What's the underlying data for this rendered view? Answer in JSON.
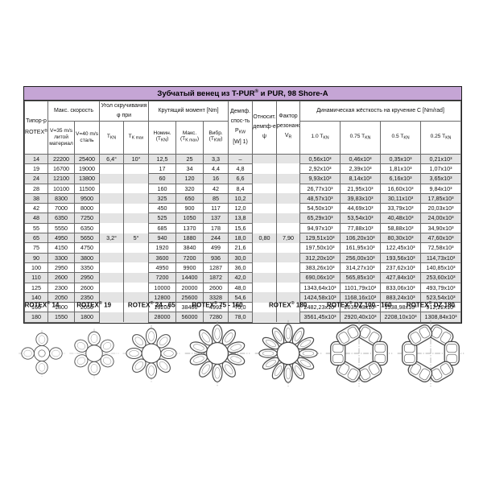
{
  "title": "Зубчатый венец из T-PUR® и PUR, 98 Shore-A",
  "table": {
    "headers": {
      "type_col": "Типор-р\nROTEX®",
      "speed_group": "Макс. скорость",
      "v35": "V=35 m/s\nлитой\nматериал",
      "v40": "V=40 m/s\nсталь",
      "angle_group": "Угол скручивания φ при",
      "angle_tkn": "T_{KN}",
      "angle_tkmax": "T_{K max}",
      "torque_group": "Крутящий момент [Nm]",
      "torque_nom": "Номин.\n(T_{KN})",
      "torque_max": "Макс.\n(T_{K max})",
      "torque_vibr": "Вибр.\n(T_{KW})",
      "damping_col": "Демпф.\nспос-ть\nP_{KW}\n[W] 1)",
      "rel_damping_col": "Относит.\nдемпф-е ψ",
      "resonance_col": "Фактор\nрезонанса\nV_{R}",
      "stiffness_group": "Динамическая жёсткость на кручение C [Nm/rad]",
      "stiffness_cols": [
        "1.0 T_{KN}",
        "0.75 T_{KN}",
        "0.5 T_{KN}",
        "0.25 T_{KN}"
      ]
    },
    "angles": {
      "row_14": {
        "tkn": "6,4°",
        "tkmax": "10°"
      },
      "rows_19_180": {
        "tkn": "3,2°",
        "tkmax": "5°"
      }
    },
    "rel_damping": "0,80",
    "resonance_factor": "7,90",
    "rows": [
      {
        "size": "14",
        "v35": "22200",
        "v40": "25400",
        "t_nom": "12,5",
        "t_max": "25",
        "t_vibr": "3,3",
        "pkw": "–",
        "c": [
          "0,56x10³",
          "0,46x10³",
          "0,35x10³",
          "0,21x10³"
        ]
      },
      {
        "size": "19",
        "v35": "16700",
        "v40": "19000",
        "t_nom": "17",
        "t_max": "34",
        "t_vibr": "4,4",
        "pkw": "4,8",
        "c": [
          "2,92x10³",
          "2,39x10³",
          "1,81x10³",
          "1,07x10³"
        ]
      },
      {
        "size": "24",
        "v35": "12100",
        "v40": "13800",
        "t_nom": "60",
        "t_max": "120",
        "t_vibr": "16",
        "pkw": "6,6",
        "c": [
          "9,93x10³",
          "8,14x10³",
          "6,16x10³",
          "3,65x10³"
        ]
      },
      {
        "size": "28",
        "v35": "10100",
        "v40": "11500",
        "t_nom": "160",
        "t_max": "320",
        "t_vibr": "42",
        "pkw": "8,4",
        "c": [
          "26,77x10³",
          "21,95x10³",
          "16,60x10³",
          "9,84x10³"
        ]
      },
      {
        "size": "38",
        "v35": "8300",
        "v40": "9500",
        "t_nom": "325",
        "t_max": "650",
        "t_vibr": "85",
        "pkw": "10,2",
        "c": [
          "48,57x10³",
          "39,83x10³",
          "30,11x10³",
          "17,85x10³"
        ]
      },
      {
        "size": "42",
        "v35": "7000",
        "v40": "8000",
        "t_nom": "450",
        "t_max": "900",
        "t_vibr": "117",
        "pkw": "12,0",
        "c": [
          "54,50x10³",
          "44,69x10³",
          "33,79x10³",
          "20,03x10³"
        ]
      },
      {
        "size": "48",
        "v35": "6350",
        "v40": "7250",
        "t_nom": "525",
        "t_max": "1050",
        "t_vibr": "137",
        "pkw": "13,8",
        "c": [
          "65,29x10³",
          "53,54x10³",
          "40,48x10³",
          "24,00x10³"
        ]
      },
      {
        "size": "55",
        "v35": "5550",
        "v40": "6350",
        "t_nom": "685",
        "t_max": "1370",
        "t_vibr": "178",
        "pkw": "15,6",
        "c": [
          "94,97x10³",
          "77,88x10³",
          "58,88x10³",
          "34,90x10³"
        ]
      },
      {
        "size": "65",
        "v35": "4950",
        "v40": "5650",
        "t_nom": "940",
        "t_max": "1880",
        "t_vibr": "244",
        "pkw": "18,0",
        "c": [
          "129,51x10³",
          "106,20x10³",
          "80,30x10³",
          "47,60x10³"
        ]
      },
      {
        "size": "75",
        "v35": "4150",
        "v40": "4750",
        "t_nom": "1920",
        "t_max": "3840",
        "t_vibr": "499",
        "pkw": "21,6",
        "c": [
          "197,50x10³",
          "161,95x10³",
          "122,45x10³",
          "72,58x10³"
        ]
      },
      {
        "size": "90",
        "v35": "3300",
        "v40": "3800",
        "t_nom": "3600",
        "t_max": "7200",
        "t_vibr": "936",
        "pkw": "30,0",
        "c": [
          "312,20x10³",
          "256,00x10³",
          "193,56x10³",
          "114,73x10³"
        ]
      },
      {
        "size": "100",
        "v35": "2950",
        "v40": "3350",
        "t_nom": "4950",
        "t_max": "9900",
        "t_vibr": "1287",
        "pkw": "36,0",
        "c": [
          "383,26x10³",
          "314,27x10³",
          "237,62x10³",
          "140,85x10³"
        ]
      },
      {
        "size": "110",
        "v35": "2600",
        "v40": "2950",
        "t_nom": "7200",
        "t_max": "14400",
        "t_vibr": "1872",
        "pkw": "42,0",
        "c": [
          "690,06x10³",
          "565,85x10³",
          "427,84x10³",
          "253,60x10³"
        ]
      },
      {
        "size": "125",
        "v35": "2300",
        "v40": "2600",
        "t_nom": "10000",
        "t_max": "20000",
        "t_vibr": "2600",
        "pkw": "48,0",
        "c": [
          "1343,64x10³",
          "1101,79x10³",
          "833,06x10³",
          "493,79x10³"
        ]
      },
      {
        "size": "140",
        "v35": "2050",
        "v40": "2350",
        "t_nom": "12800",
        "t_max": "25600",
        "t_vibr": "3328",
        "pkw": "54,6",
        "c": [
          "1424,58x10³",
          "1168,16x10³",
          "883,24x10³",
          "523,54x10³"
        ]
      },
      {
        "size": "160",
        "v35": "1800",
        "v40": "2050",
        "t_nom": "19200",
        "t_max": "38400",
        "t_vibr": "4992",
        "pkw": "75,0",
        "c": [
          "2482,23x10³",
          "2035,43x10³",
          "1538,98x10³",
          "912,22x10³"
        ]
      },
      {
        "size": "180",
        "v35": "1550",
        "v40": "1800",
        "t_nom": "28000",
        "t_max": "56000",
        "t_vibr": "7280",
        "pkw": "78,0",
        "c": [
          "3561,45x10³",
          "2920,40x10³",
          "2208,10x10³",
          "1308,84x10³"
        ]
      }
    ]
  },
  "figures": [
    {
      "label": "ROTEX® 14",
      "type": "spider",
      "lobes": 4,
      "size": 60
    },
    {
      "label": "ROTEX® 19",
      "type": "spider",
      "lobes": 6,
      "size": 64
    },
    {
      "label": "ROTEX® 24 - 65",
      "type": "spider",
      "lobes": 8,
      "size": 74
    },
    {
      "label": "ROTEX® 75 - 160",
      "type": "spider",
      "lobes": 10,
      "size": 84
    },
    {
      "label": "ROTEX® 180",
      "type": "spider",
      "lobes": 12,
      "size": 86
    },
    {
      "label": "ROTEX® DZ 100 - 160",
      "type": "dz",
      "lobes": 6,
      "size": 86
    },
    {
      "label": "ROTEX® DZ 180",
      "type": "dz",
      "lobes": 6,
      "size": 86
    }
  ],
  "colors": {
    "title_bg": "#c5a5d5",
    "row_alt": "#e4e4e4",
    "grid_line": "#6a6a6a",
    "drawing_line": "#4a4a4a",
    "centerline": "#999999"
  }
}
